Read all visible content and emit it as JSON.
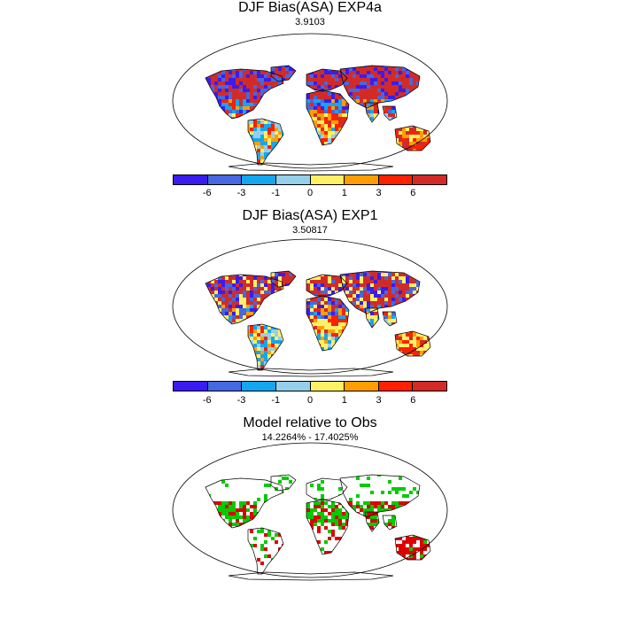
{
  "panels": [
    {
      "title": "DJF Bias(ASA) EXP4a",
      "subtitle": "3.9103"
    },
    {
      "title": "DJF Bias(ASA) EXP1",
      "subtitle": "3.50817"
    },
    {
      "title": "Model relative to Obs",
      "subtitle": "14.2264% - 17.4025%"
    }
  ],
  "colorbar": {
    "colors": [
      "#3a1cf0",
      "#4668e0",
      "#14a6f0",
      "#96cfea",
      "#fff066",
      "#ff9e00",
      "#ff2000",
      "#d22b27"
    ],
    "labels": [
      "-6",
      "-3",
      "-1",
      "0",
      "1",
      "3",
      "6"
    ]
  },
  "mask_colors": {
    "better": "#00cc00",
    "worse": "#dd0000"
  }
}
